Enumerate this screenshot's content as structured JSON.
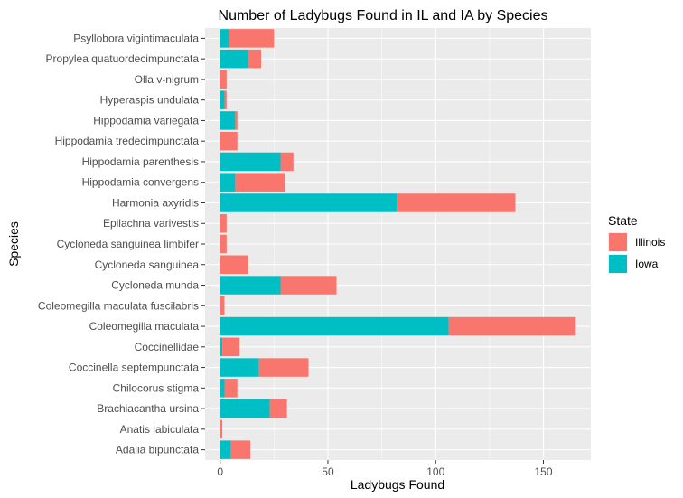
{
  "chart_data": {
    "type": "bar",
    "orientation": "horizontal",
    "stacked": true,
    "title": "Number of Ladybugs Found in IL and IA by Species",
    "xlabel": "Ladybugs Found",
    "ylabel": "Species",
    "xlim": [
      -7,
      172
    ],
    "xticks": [
      0,
      50,
      100,
      150
    ],
    "grid": true,
    "legend_position": "right",
    "legend_title": "State",
    "categories": [
      "Psyllobora vigintimaculata",
      "Propylea quatuordecimpunctata",
      "Olla v-nigrum",
      "Hyperaspis undulata",
      "Hippodamia variegata",
      "Hippodamia tredecimpunctata",
      "Hippodamia parenthesis",
      "Hippodamia convergens",
      "Harmonia axyridis",
      "Epilachna varivestis",
      "Cycloneda sanguinea limbifer",
      "Cycloneda sanguinea",
      "Cycloneda munda",
      "Coleomegilla maculata fuscilabris",
      "Coleomegilla maculata",
      "Coccinellidae",
      "Coccinella septempunctata",
      "Chilocorus stigma",
      "Brachiacantha ursina",
      "Anatis labiculata",
      "Adalia bipunctata"
    ],
    "series": [
      {
        "name": "Iowa",
        "color": "#00BFC4",
        "values": [
          4,
          13,
          0,
          2,
          7,
          0,
          28,
          7,
          82,
          0,
          0,
          0,
          28,
          0,
          106,
          1,
          18,
          2,
          23,
          0,
          5
        ]
      },
      {
        "name": "Illinois",
        "color": "#F8766D",
        "values": [
          21,
          6,
          3,
          1,
          1,
          8,
          6,
          23,
          55,
          3,
          3,
          13,
          26,
          2,
          59,
          8,
          23,
          6,
          8,
          1,
          9
        ]
      }
    ],
    "legend_order": [
      "Illinois",
      "Iowa"
    ]
  }
}
